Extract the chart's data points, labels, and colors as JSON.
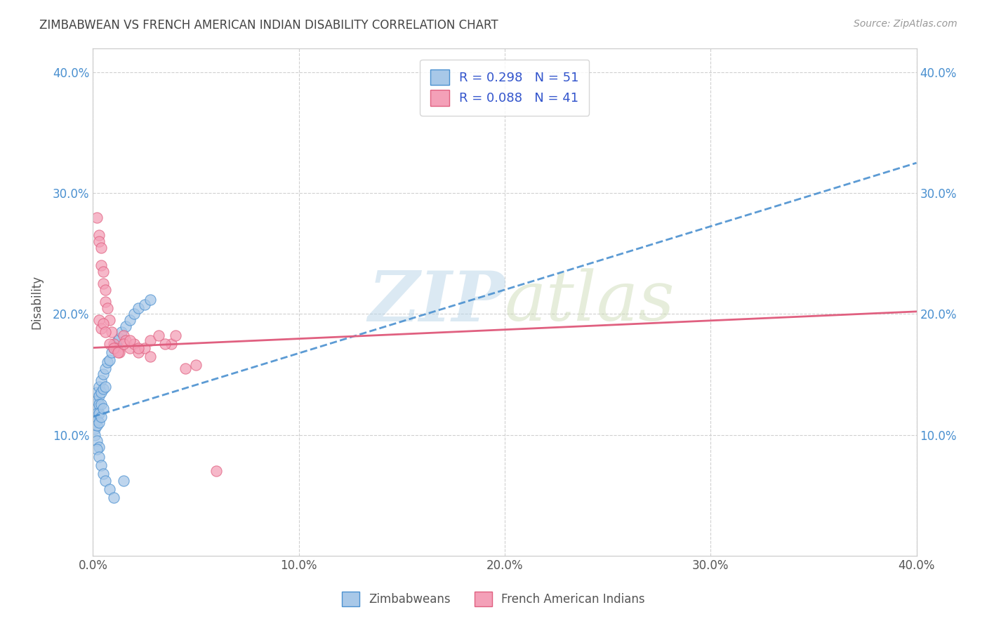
{
  "title": "ZIMBABWEAN VS FRENCH AMERICAN INDIAN DISABILITY CORRELATION CHART",
  "source": "Source: ZipAtlas.com",
  "ylabel": "Disability",
  "xlim": [
    0.0,
    0.4
  ],
  "ylim": [
    0.0,
    0.42
  ],
  "zim_color": "#a8c8e8",
  "fai_color": "#f4a0b8",
  "zim_line_color": "#4a90d0",
  "fai_line_color": "#e06080",
  "zim_R": 0.298,
  "fai_R": 0.088,
  "zim_N": 51,
  "fai_N": 41,
  "watermark_zip": "ZIP",
  "watermark_atlas": "atlas",
  "background_color": "#ffffff",
  "grid_color": "#d0d0d0",
  "zim_line_x0": 0.0,
  "zim_line_y0": 0.115,
  "zim_line_x1": 0.4,
  "zim_line_y1": 0.325,
  "fai_line_x0": 0.0,
  "fai_line_y0": 0.172,
  "fai_line_x1": 0.4,
  "fai_line_y1": 0.202,
  "zimbabweans_x": [
    0.001,
    0.001,
    0.001,
    0.001,
    0.001,
    0.001,
    0.001,
    0.002,
    0.002,
    0.002,
    0.002,
    0.002,
    0.002,
    0.002,
    0.003,
    0.003,
    0.003,
    0.003,
    0.003,
    0.003,
    0.004,
    0.004,
    0.004,
    0.004,
    0.005,
    0.005,
    0.005,
    0.006,
    0.006,
    0.007,
    0.008,
    0.009,
    0.01,
    0.011,
    0.012,
    0.013,
    0.014,
    0.016,
    0.018,
    0.02,
    0.022,
    0.025,
    0.028,
    0.002,
    0.003,
    0.004,
    0.005,
    0.006,
    0.008,
    0.01,
    0.015
  ],
  "zimbabweans_y": [
    0.13,
    0.125,
    0.12,
    0.115,
    0.11,
    0.105,
    0.1,
    0.135,
    0.128,
    0.122,
    0.118,
    0.112,
    0.108,
    0.095,
    0.14,
    0.132,
    0.125,
    0.118,
    0.11,
    0.09,
    0.145,
    0.135,
    0.125,
    0.115,
    0.15,
    0.138,
    0.122,
    0.155,
    0.14,
    0.16,
    0.162,
    0.168,
    0.172,
    0.175,
    0.178,
    0.18,
    0.185,
    0.19,
    0.195,
    0.2,
    0.205,
    0.208,
    0.212,
    0.088,
    0.082,
    0.075,
    0.068,
    0.062,
    0.055,
    0.048,
    0.062
  ],
  "fai_x": [
    0.002,
    0.003,
    0.003,
    0.004,
    0.004,
    0.005,
    0.005,
    0.006,
    0.006,
    0.007,
    0.008,
    0.009,
    0.01,
    0.011,
    0.012,
    0.013,
    0.015,
    0.016,
    0.018,
    0.02,
    0.022,
    0.025,
    0.028,
    0.032,
    0.038,
    0.003,
    0.004,
    0.005,
    0.006,
    0.008,
    0.01,
    0.012,
    0.015,
    0.018,
    0.022,
    0.028,
    0.035,
    0.04,
    0.045,
    0.05,
    0.06
  ],
  "fai_y": [
    0.28,
    0.265,
    0.26,
    0.255,
    0.24,
    0.235,
    0.225,
    0.22,
    0.21,
    0.205,
    0.195,
    0.185,
    0.175,
    0.172,
    0.17,
    0.168,
    0.182,
    0.178,
    0.172,
    0.175,
    0.168,
    0.172,
    0.178,
    0.182,
    0.175,
    0.195,
    0.188,
    0.192,
    0.185,
    0.175,
    0.172,
    0.168,
    0.175,
    0.178,
    0.172,
    0.165,
    0.175,
    0.182,
    0.155,
    0.158,
    0.07
  ]
}
